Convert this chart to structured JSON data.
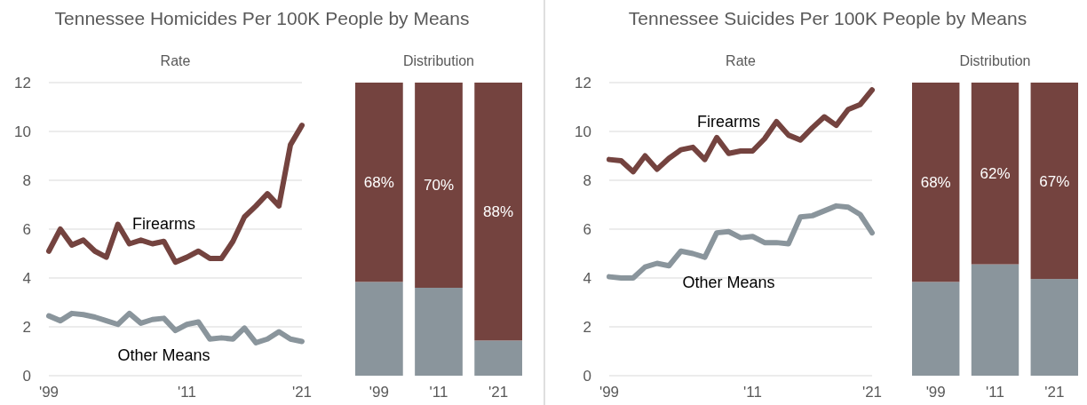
{
  "chart_data": [
    {
      "type": "line",
      "title": "Tennessee Homicides Per 100K People by Means",
      "subtitle": "Rate",
      "x": [
        1999,
        2000,
        2001,
        2002,
        2003,
        2004,
        2005,
        2006,
        2007,
        2008,
        2009,
        2010,
        2011,
        2012,
        2013,
        2014,
        2015,
        2016,
        2017,
        2018,
        2019,
        2020,
        2021
      ],
      "xlim": [
        1999,
        2021
      ],
      "xticks": [
        {
          "value": 1999,
          "label": "'99"
        },
        {
          "value": 2011,
          "label": "'11"
        },
        {
          "value": 2021,
          "label": "'21"
        }
      ],
      "ylim": [
        0,
        12
      ],
      "yticks": [
        0,
        2,
        4,
        6,
        8,
        10,
        12
      ],
      "grid": "y",
      "series": [
        {
          "name": "Firearms",
          "color": "#74433f",
          "values": [
            5.1,
            6.0,
            5.35,
            5.55,
            5.1,
            4.85,
            6.2,
            5.4,
            5.55,
            5.4,
            5.5,
            4.65,
            4.85,
            5.1,
            4.8,
            4.8,
            5.5,
            6.5,
            6.95,
            7.45,
            6.95,
            9.45,
            10.25
          ]
        },
        {
          "name": "Other Means",
          "color": "#8a959c",
          "values": [
            2.45,
            2.25,
            2.55,
            2.5,
            2.4,
            2.25,
            2.1,
            2.55,
            2.15,
            2.3,
            2.35,
            1.85,
            2.1,
            2.2,
            1.5,
            1.55,
            1.5,
            1.95,
            1.35,
            1.5,
            1.8,
            1.5,
            1.4
          ]
        }
      ]
    },
    {
      "type": "bar",
      "subtitle": "Distribution",
      "stacked": true,
      "categories": [
        "'99",
        "'11",
        "'21"
      ],
      "ylim": [
        0,
        100
      ],
      "tick_labels": "x",
      "series": [
        {
          "color": "#8a959c",
          "values": [
            32,
            30,
            12
          ]
        },
        {
          "color": "#74433f",
          "values": [
            68,
            70,
            88
          ],
          "value_labels": [
            "68%",
            "70%",
            "88%"
          ]
        }
      ]
    },
    {
      "type": "line",
      "title": "Tennessee Suicides Per 100K People by Means",
      "subtitle": "Rate",
      "x": [
        1999,
        2000,
        2001,
        2002,
        2003,
        2004,
        2005,
        2006,
        2007,
        2008,
        2009,
        2010,
        2011,
        2012,
        2013,
        2014,
        2015,
        2016,
        2017,
        2018,
        2019,
        2020,
        2021
      ],
      "xlim": [
        1999,
        2021
      ],
      "xticks": [
        {
          "value": 1999,
          "label": "'99"
        },
        {
          "value": 2011,
          "label": "'11"
        },
        {
          "value": 2021,
          "label": "'21"
        }
      ],
      "ylim": [
        0,
        12
      ],
      "yticks": [
        0,
        2,
        4,
        6,
        8,
        10,
        12
      ],
      "grid": "y",
      "series": [
        {
          "name": "Firearms",
          "color": "#74433f",
          "values": [
            8.85,
            8.8,
            8.35,
            9.0,
            8.45,
            8.9,
            9.25,
            9.35,
            8.85,
            9.75,
            9.1,
            9.2,
            9.2,
            9.7,
            10.4,
            9.85,
            9.65,
            10.15,
            10.6,
            10.25,
            10.9,
            11.1,
            11.7
          ]
        },
        {
          "name": "Other Means",
          "color": "#8a959c",
          "values": [
            4.05,
            4.0,
            4.0,
            4.45,
            4.6,
            4.5,
            5.1,
            5.0,
            4.85,
            5.85,
            5.9,
            5.65,
            5.7,
            5.45,
            5.45,
            5.4,
            6.5,
            6.55,
            6.75,
            6.95,
            6.9,
            6.6,
            5.85
          ]
        }
      ]
    },
    {
      "type": "bar",
      "subtitle": "Distribution",
      "stacked": true,
      "categories": [
        "'99",
        "'11",
        "'21"
      ],
      "ylim": [
        0,
        100
      ],
      "tick_labels": "x",
      "series": [
        {
          "color": "#8a959c",
          "values": [
            32,
            38,
            33
          ]
        },
        {
          "color": "#74433f",
          "values": [
            68,
            62,
            67
          ],
          "value_labels": [
            "68%",
            "62%",
            "67%"
          ]
        }
      ]
    }
  ]
}
